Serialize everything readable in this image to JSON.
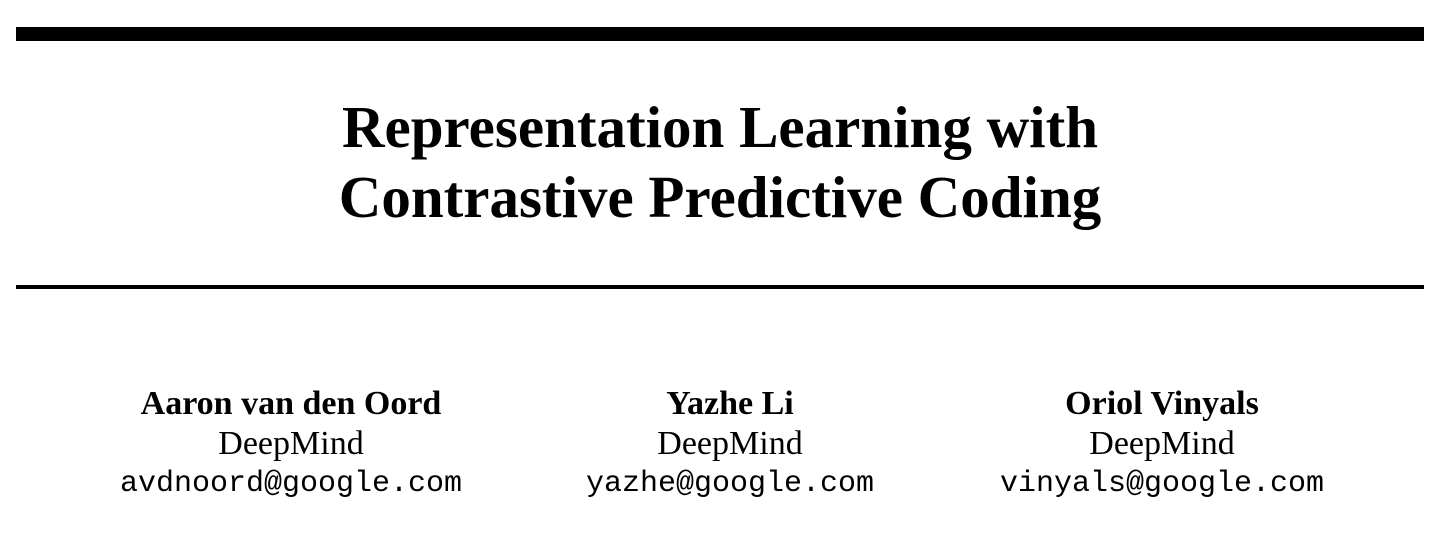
{
  "paper": {
    "title_lines": [
      "Representation Learning with",
      "Contrastive Predictive Coding"
    ],
    "authors": [
      {
        "name": "Aaron van den Oord",
        "affiliation": "DeepMind",
        "email": "avdnoord@google.com"
      },
      {
        "name": "Yazhe Li",
        "affiliation": "DeepMind",
        "email": "yazhe@google.com"
      },
      {
        "name": "Oriol Vinyals",
        "affiliation": "DeepMind",
        "email": "vinyals@google.com"
      }
    ]
  }
}
